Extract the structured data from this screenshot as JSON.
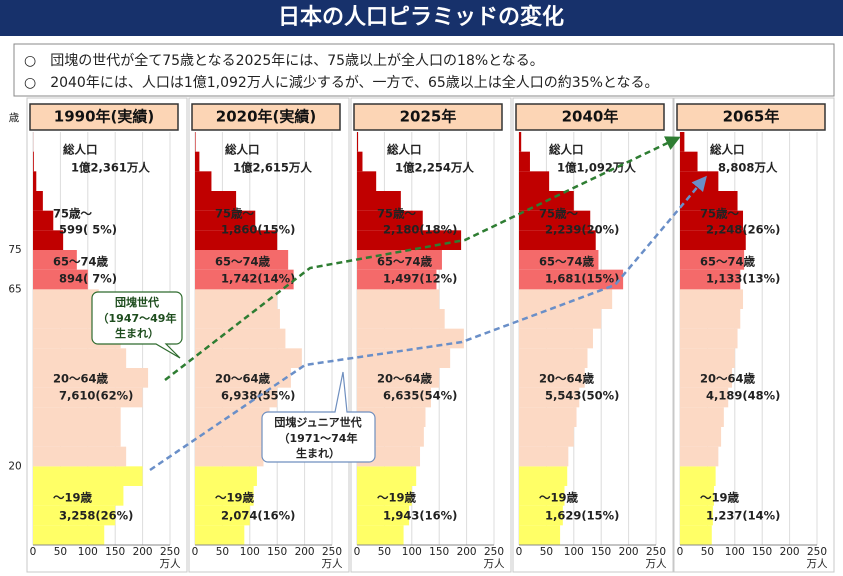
{
  "title": "日本の人口ピラミッドの変化",
  "notes": [
    "○　団塊の世代が全て75歳となる2025年には、75歳以上が全人口の18%となる。",
    "○　2040年には、人口は1億1,092万人に減少するが、一方で、65歳以上は全人口の約35%となる。"
  ],
  "callouts": [
    [
      "団塊世代",
      "（1947～49年",
      "生まれ）"
    ],
    [
      "団塊ジュニア世代",
      "（1971～74年",
      "生まれ）"
    ]
  ],
  "chart_data": [
    {
      "type": "bar",
      "orientation": "horizontal",
      "title": "1990年(実績)",
      "ylabel": "歳",
      "y": [
        0,
        5,
        10,
        15,
        20,
        25,
        30,
        35,
        40,
        45,
        50,
        55,
        60,
        65,
        70,
        75,
        80,
        85,
        90,
        95,
        100
      ],
      "values": [
        130,
        150,
        165,
        200,
        170,
        160,
        160,
        200,
        210,
        170,
        160,
        150,
        120,
        100,
        80,
        55,
        37,
        18,
        6,
        1.5,
        0.2
      ],
      "ylim": [
        0,
        105
      ],
      "yticks": [
        20,
        65,
        75
      ],
      "xlim": [
        0,
        250
      ],
      "xticks": [
        0,
        50,
        100,
        150,
        200,
        250
      ],
      "xlabel": "万人",
      "grid": true,
      "age_colors": [
        {
          "from": 0,
          "color": "#ffff66"
        },
        {
          "from": 20,
          "color": "#fcd9c4"
        },
        {
          "from": 65,
          "color": "#f46a6a"
        },
        {
          "from": 75,
          "color": "#c00000"
        }
      ],
      "annotations": [
        "総人口",
        "1億2,361万人",
        "75歳～",
        "599( 5%)",
        "65～74歳",
        "894( 7%)",
        "20～64歳",
        "7,610(62%)",
        "～19歳",
        "3,258(26%)"
      ]
    },
    {
      "type": "bar",
      "orientation": "horizontal",
      "title": "2020年(実績)",
      "y": [
        0,
        5,
        10,
        15,
        20,
        25,
        30,
        35,
        40,
        45,
        50,
        55,
        60,
        65,
        70,
        75,
        80,
        85,
        90,
        95,
        100
      ],
      "values": [
        90,
        100,
        107,
        113,
        125,
        126,
        136,
        150,
        175,
        195,
        165,
        155,
        150,
        180,
        170,
        150,
        110,
        75,
        30,
        8,
        1
      ],
      "ylim": [
        0,
        105
      ],
      "xlim": [
        0,
        250
      ],
      "xticks": [
        0,
        50,
        100,
        150,
        200,
        250
      ],
      "xlabel": "万人",
      "grid": true,
      "age_colors": [
        {
          "from": 0,
          "color": "#ffff66"
        },
        {
          "from": 20,
          "color": "#fcd9c4"
        },
        {
          "from": 65,
          "color": "#f46a6a"
        },
        {
          "from": 75,
          "color": "#c00000"
        }
      ],
      "annotations": [
        "総人口",
        "1億2,615万人",
        "75歳～",
        "1,860(15%)",
        "65～74歳",
        "1,742(14%)",
        "20～64歳",
        "6,938(55%)",
        "～19歳",
        "2,074(16%)"
      ]
    },
    {
      "type": "bar",
      "orientation": "horizontal",
      "title": "2025年",
      "y": [
        0,
        5,
        10,
        15,
        20,
        25,
        30,
        35,
        40,
        45,
        50,
        55,
        60,
        65,
        70,
        75,
        80,
        85,
        90,
        95,
        100
      ],
      "values": [
        85,
        95,
        100,
        108,
        115,
        122,
        125,
        135,
        150,
        170,
        195,
        160,
        150,
        145,
        155,
        190,
        120,
        80,
        35,
        10,
        2
      ],
      "ylim": [
        0,
        105
      ],
      "xlim": [
        0,
        250
      ],
      "xticks": [
        0,
        50,
        100,
        150,
        200,
        250
      ],
      "xlabel": "万人",
      "grid": true,
      "age_colors": [
        {
          "from": 0,
          "color": "#ffff66"
        },
        {
          "from": 20,
          "color": "#fcd9c4"
        },
        {
          "from": 65,
          "color": "#f46a6a"
        },
        {
          "from": 75,
          "color": "#c00000"
        }
      ],
      "annotations": [
        "総人口",
        "1億2,254万人",
        "75歳～",
        "2,180(18%)",
        "65～74歳",
        "1,497(12%)",
        "20～64歳",
        "6,635(54%)",
        "～19歳",
        "1,943(16%)"
      ]
    },
    {
      "type": "bar",
      "orientation": "horizontal",
      "title": "2040年",
      "y": [
        0,
        5,
        10,
        15,
        20,
        25,
        30,
        35,
        40,
        45,
        50,
        55,
        60,
        65,
        70,
        75,
        80,
        85,
        90,
        95,
        100
      ],
      "values": [
        75,
        80,
        83,
        88,
        90,
        100,
        105,
        110,
        120,
        125,
        135,
        150,
        170,
        190,
        145,
        140,
        130,
        100,
        55,
        20,
        4
      ],
      "ylim": [
        0,
        105
      ],
      "xlim": [
        0,
        250
      ],
      "xticks": [
        0,
        50,
        100,
        150,
        200,
        250
      ],
      "xlabel": "万人",
      "grid": true,
      "age_colors": [
        {
          "from": 0,
          "color": "#ffff66"
        },
        {
          "from": 20,
          "color": "#fcd9c4"
        },
        {
          "from": 65,
          "color": "#f46a6a"
        },
        {
          "from": 75,
          "color": "#c00000"
        }
      ],
      "annotations": [
        "総人口",
        "1億1,092万人",
        "75歳～",
        "2,239(20%)",
        "65～74歳",
        "1,681(15%)",
        "20～64歳",
        "5,543(50%)",
        "～19歳",
        "1,629(15%)"
      ]
    },
    {
      "type": "bar",
      "orientation": "horizontal",
      "title": "2065年",
      "y": [
        0,
        5,
        10,
        15,
        20,
        25,
        30,
        35,
        40,
        45,
        50,
        55,
        60,
        65,
        70,
        75,
        80,
        85,
        90,
        95,
        100
      ],
      "values": [
        58,
        60,
        62,
        65,
        70,
        75,
        80,
        88,
        95,
        100,
        105,
        110,
        115,
        110,
        117,
        120,
        115,
        105,
        70,
        32,
        8
      ],
      "ylim": [
        0,
        105
      ],
      "xlim": [
        0,
        250
      ],
      "xticks": [
        0,
        50,
        100,
        150,
        200,
        250
      ],
      "xlabel": "万人",
      "grid": true,
      "age_colors": [
        {
          "from": 0,
          "color": "#ffff66"
        },
        {
          "from": 20,
          "color": "#fcd9c4"
        },
        {
          "from": 65,
          "color": "#f46a6a"
        },
        {
          "from": 75,
          "color": "#c00000"
        }
      ],
      "annotations": [
        "総人口",
        "8,808万人",
        "75歳～",
        "2,248(26%)",
        "65～74歳",
        "1,133(13%)",
        "20～64歳",
        "4,189(48%)",
        "～19歳",
        "1,237(14%)"
      ]
    }
  ]
}
